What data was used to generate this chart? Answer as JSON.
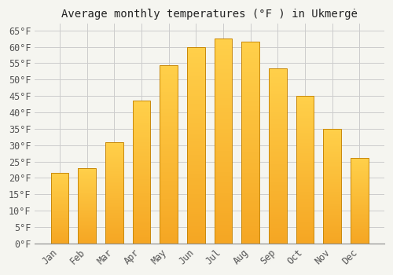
{
  "title": "Average monthly temperatures (°F ) in Ukmergė",
  "months": [
    "Jan",
    "Feb",
    "Mar",
    "Apr",
    "May",
    "Jun",
    "Jul",
    "Aug",
    "Sep",
    "Oct",
    "Nov",
    "Dec"
  ],
  "values": [
    21.5,
    23.0,
    31.0,
    43.5,
    54.5,
    60.0,
    62.5,
    61.5,
    53.5,
    45.0,
    35.0,
    26.0
  ],
  "bar_color_top": "#FFD04A",
  "bar_color_bottom": "#F5A623",
  "bar_edge_color": "#C8880A",
  "background_color": "#F5F5F0",
  "plot_bg_color": "#F5F5F0",
  "grid_color": "#CCCCCC",
  "ylim": [
    0,
    67
  ],
  "yticks": [
    0,
    5,
    10,
    15,
    20,
    25,
    30,
    35,
    40,
    45,
    50,
    55,
    60,
    65
  ],
  "title_fontsize": 10,
  "tick_fontsize": 8.5,
  "font_family": "monospace"
}
